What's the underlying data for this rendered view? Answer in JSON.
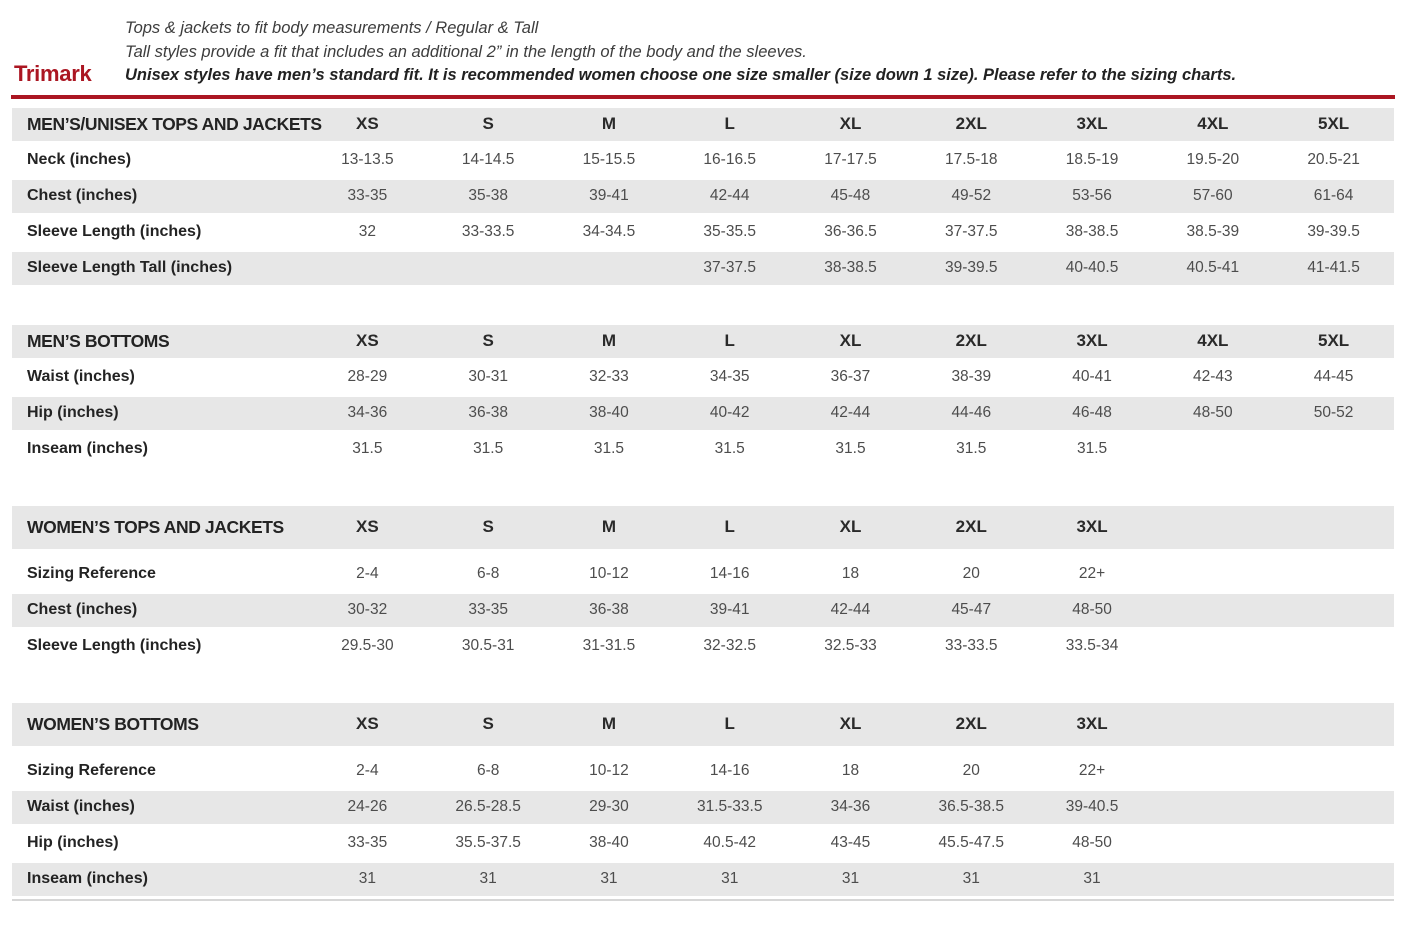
{
  "header": {
    "brand": "Trimark",
    "line1": "Tops & jackets to fit body measurements / Regular & Tall",
    "line2": "Tall styles provide a fit that includes an additional 2” in the length of the body and the sleeves.",
    "line3": "Unisex styles have men’s standard fit. It is recommended women choose one size smaller (size down 1 size).  Please refer to the sizing charts."
  },
  "colors": {
    "accent_red": "#ab1622",
    "band_gray": "#e7e7e7",
    "label_dark": "#232323",
    "value_gray": "#4d4d4d"
  },
  "tables": [
    {
      "title": "MEN’S/UNISEX TOPS AND JACKETS",
      "columns": [
        "XS",
        "S",
        "M",
        "L",
        "XL",
        "2XL",
        "3XL",
        "4XL",
        "5XL"
      ],
      "header_gap": false,
      "rows": [
        {
          "label": "Neck (inches)",
          "values": [
            "13-13.5",
            "14-14.5",
            "15-15.5",
            "16-16.5",
            "17-17.5",
            "17.5-18",
            "18.5-19",
            "19.5-20",
            "20.5-21"
          ]
        },
        {
          "label": "Chest (inches)",
          "values": [
            "33-35",
            "35-38",
            "39-41",
            "42-44",
            "45-48",
            "49-52",
            "53-56",
            "57-60",
            "61-64"
          ]
        },
        {
          "label": "Sleeve Length (inches)",
          "values": [
            "32",
            "33-33.5",
            "34-34.5",
            "35-35.5",
            "36-36.5",
            "37-37.5",
            "38-38.5",
            "38.5-39",
            "39-39.5"
          ]
        },
        {
          "label": "Sleeve Length Tall (inches)",
          "values": [
            "",
            "",
            "",
            "37-37.5",
            "38-38.5",
            "39-39.5",
            "40-40.5",
            "40.5-41",
            "41-41.5"
          ]
        }
      ]
    },
    {
      "title": "MEN’S BOTTOMS",
      "columns": [
        "XS",
        "S",
        "M",
        "L",
        "XL",
        "2XL",
        "3XL",
        "4XL",
        "5XL"
      ],
      "header_gap": false,
      "rows": [
        {
          "label": "Waist (inches)",
          "values": [
            "28-29",
            "30-31",
            "32-33",
            "34-35",
            "36-37",
            "38-39",
            "40-41",
            "42-43",
            "44-45"
          ]
        },
        {
          "label": "Hip (inches)",
          "values": [
            "34-36",
            "36-38",
            "38-40",
            "40-42",
            "42-44",
            "44-46",
            "46-48",
            "48-50",
            "50-52"
          ]
        },
        {
          "label": "Inseam (inches)",
          "values": [
            "31.5",
            "31.5",
            "31.5",
            "31.5",
            "31.5",
            "31.5",
            "31.5",
            "",
            ""
          ]
        }
      ]
    },
    {
      "title": "WOMEN’S TOPS AND JACKETS",
      "columns": [
        "XS",
        "S",
        "M",
        "L",
        "XL",
        "2XL",
        "3XL",
        "",
        ""
      ],
      "header_gap": true,
      "rows": [
        {
          "label": "Sizing Reference",
          "values": [
            "2-4",
            "6-8",
            "10-12",
            "14-16",
            "18",
            "20",
            "22+",
            "",
            ""
          ]
        },
        {
          "label": "Chest (inches)",
          "values": [
            "30-32",
            "33-35",
            "36-38",
            "39-41",
            "42-44",
            "45-47",
            "48-50",
            "",
            ""
          ]
        },
        {
          "label": "Sleeve Length (inches)",
          "values": [
            "29.5-30",
            "30.5-31",
            "31-31.5",
            "32-32.5",
            "32.5-33",
            "33-33.5",
            "33.5-34",
            "",
            ""
          ]
        }
      ]
    },
    {
      "title": "WOMEN’S BOTTOMS",
      "columns": [
        "XS",
        "S",
        "M",
        "L",
        "XL",
        "2XL",
        "3XL",
        "",
        ""
      ],
      "header_gap": true,
      "rows": [
        {
          "label": "Sizing Reference",
          "values": [
            "2-4",
            "6-8",
            "10-12",
            "14-16",
            "18",
            "20",
            "22+",
            "",
            ""
          ]
        },
        {
          "label": "Waist (inches)",
          "values": [
            "24-26",
            "26.5-28.5",
            "29-30",
            "31.5-33.5",
            "34-36",
            "36.5-38.5",
            "39-40.5",
            "",
            ""
          ]
        },
        {
          "label": "Hip (inches)",
          "values": [
            "33-35",
            "35.5-37.5",
            "38-40",
            "40.5-42",
            "43-45",
            "45.5-47.5",
            "48-50",
            "",
            ""
          ]
        },
        {
          "label": "Inseam (inches)",
          "values": [
            "31",
            "31",
            "31",
            "31",
            "31",
            "31",
            "31",
            "",
            ""
          ]
        }
      ]
    }
  ]
}
